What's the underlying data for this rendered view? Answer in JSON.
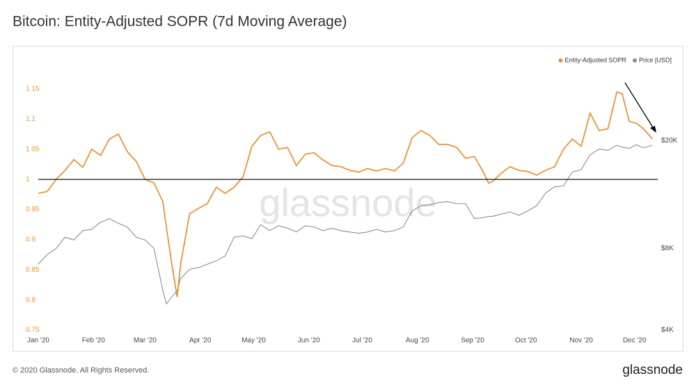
{
  "chart_data": {
    "type": "line",
    "title": "Bitcoin: Entity-Adjusted SOPR (7d Moving Average)",
    "x": [
      0,
      5,
      10,
      15,
      20,
      25,
      30,
      35,
      40,
      45,
      50,
      55,
      60,
      65,
      70,
      72,
      75,
      78,
      80,
      85,
      90,
      95,
      100,
      105,
      110,
      115,
      120,
      125,
      130,
      135,
      140,
      145,
      150,
      155,
      160,
      165,
      170,
      175,
      180,
      185,
      190,
      195,
      200,
      205,
      210,
      215,
      220,
      225,
      230,
      235,
      240,
      245,
      250,
      253,
      255,
      260,
      265,
      270,
      275,
      280,
      285,
      290,
      295,
      300,
      305,
      310,
      315,
      320,
      325,
      328,
      332,
      336,
      340,
      345
    ],
    "series": [
      {
        "name": "Entity-Adjusted SOPR",
        "color": "#e8943a",
        "axis": "y",
        "values": [
          0.977,
          0.98,
          1.0,
          1.015,
          1.033,
          1.02,
          1.05,
          1.04,
          1.067,
          1.075,
          1.046,
          1.03,
          1.0,
          0.994,
          0.963,
          0.92,
          0.86,
          0.805,
          0.86,
          0.943,
          0.952,
          0.96,
          0.987,
          0.977,
          0.987,
          1.004,
          1.055,
          1.073,
          1.079,
          1.05,
          1.053,
          1.023,
          1.042,
          1.044,
          1.032,
          1.023,
          1.021,
          1.015,
          1.012,
          1.018,
          1.014,
          1.018,
          1.014,
          1.027,
          1.069,
          1.081,
          1.073,
          1.058,
          1.058,
          1.053,
          1.035,
          1.038,
          1.012,
          0.994,
          0.996,
          1.01,
          1.021,
          1.015,
          1.013,
          1.007,
          1.015,
          1.021,
          1.05,
          1.067,
          1.055,
          1.11,
          1.081,
          1.084,
          1.145,
          1.142,
          1.096,
          1.093,
          1.084,
          1.067
        ]
      },
      {
        "name": "Price [USD]",
        "color": "#8c8c8c",
        "axis": "y2",
        "values": [
          7000,
          7600,
          8000,
          8800,
          8600,
          9300,
          9400,
          10000,
          10300,
          9900,
          9600,
          8800,
          8600,
          8000,
          5600,
          5000,
          5300,
          5600,
          6200,
          6700,
          6800,
          7000,
          7200,
          7500,
          8800,
          8900,
          8700,
          9800,
          9300,
          9700,
          9500,
          9200,
          9700,
          9600,
          9300,
          9500,
          9300,
          9200,
          9100,
          9200,
          9400,
          9200,
          9300,
          9600,
          11000,
          11500,
          11600,
          11800,
          11900,
          11700,
          11700,
          10300,
          10400,
          10500,
          10500,
          10700,
          10900,
          10600,
          11000,
          11500,
          12800,
          13500,
          13600,
          15300,
          15600,
          17700,
          18600,
          18400,
          19200,
          18900,
          18700,
          19300,
          18800,
          19200
        ]
      }
    ],
    "xlim": [
      0,
      348
    ],
    "xticks": [
      {
        "value": 0,
        "label": "Jan '20"
      },
      {
        "value": 31,
        "label": "Feb '20"
      },
      {
        "value": 60,
        "label": "Mar '20"
      },
      {
        "value": 91,
        "label": "Apr '20"
      },
      {
        "value": 121,
        "label": "May '20"
      },
      {
        "value": 152,
        "label": "Jun '20"
      },
      {
        "value": 182,
        "label": "Jul '20"
      },
      {
        "value": 213,
        "label": "Aug '20"
      },
      {
        "value": 244,
        "label": "Sep '20"
      },
      {
        "value": 274,
        "label": "Oct '20"
      },
      {
        "value": 305,
        "label": "Nov '20"
      },
      {
        "value": 335,
        "label": "Dec '20"
      }
    ],
    "ylim": [
      0.75,
      1.2
    ],
    "yticks": [
      0.75,
      0.8,
      0.85,
      0.9,
      0.95,
      1,
      1.05,
      1.1,
      1.15
    ],
    "y2lim": [
      4000,
      40000
    ],
    "y2ticks": [
      {
        "value": 4000,
        "label": "$4K"
      },
      {
        "value": 8000,
        "label": "$8K"
      },
      {
        "value": 20000,
        "label": "$20K"
      }
    ],
    "y2_log": true,
    "reference_line": 1,
    "legend": "top-right",
    "watermark": "glassnode"
  },
  "footer": {
    "copyright": "© 2020 Glassnode. All Rights Reserved.",
    "logo": "glassnode"
  }
}
